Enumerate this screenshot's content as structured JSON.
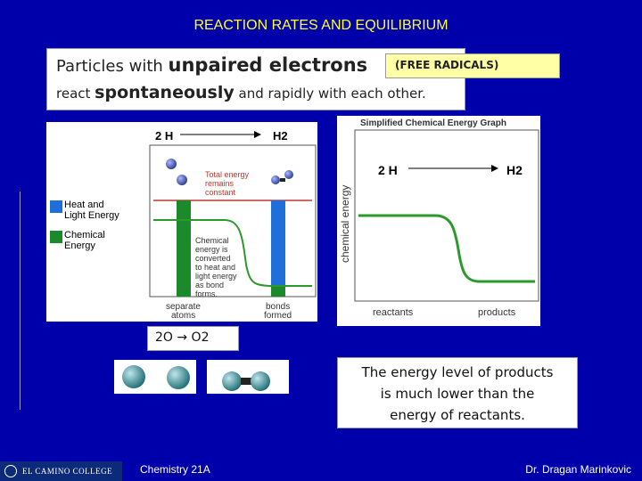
{
  "slide": {
    "title": "REACTION RATES AND EQUILIBRIUM",
    "intro": {
      "line1_pre": "Particles with ",
      "line1_big": "unpaired electrons",
      "free_radicals": "(FREE RADICALS)",
      "line2_pre": "react ",
      "line2_big": "spontaneously",
      "line2_post": " and rapidly with each other."
    },
    "left_figure": {
      "reaction": "2 H",
      "product": "H2",
      "legend_heat_l1": "Heat and",
      "legend_heat_l2": "Light Energy",
      "legend_chem_l1": "Chemical",
      "legend_chem_l2": "Energy",
      "total_energy": [
        "Total energy",
        "remains",
        "constant"
      ],
      "converted_note": [
        "Chemical",
        "energy is",
        "converted",
        "to heat and",
        "light energy",
        "as bond",
        "forms."
      ],
      "x_label_left": [
        "separate",
        "atoms"
      ],
      "x_label_right": [
        "bonds",
        "formed"
      ]
    },
    "right_figure": {
      "title": "Simplified Chemical Energy Graph",
      "reaction": "2 H",
      "product": "H2",
      "y_label": "chemical energy",
      "x_label_left": "reactants",
      "x_label_right": "products"
    },
    "equation": "2O → O2",
    "conclusion": [
      "The energy level of products",
      "is much lower than the",
      "energy of reactants."
    ],
    "footer": {
      "logo": "EL CAMINO COLLEGE",
      "course": "Chemistry 21A",
      "author": "Dr. Dragan Marinkovic"
    },
    "colors": {
      "background": "#0000aa",
      "title": "#ffff33",
      "heat_bar": "#1e6fd9",
      "chem_bar": "#1a8a2a",
      "curve": "#2b9a2b",
      "total_line": "#c0392b",
      "highlight": "#ffffa6"
    }
  }
}
